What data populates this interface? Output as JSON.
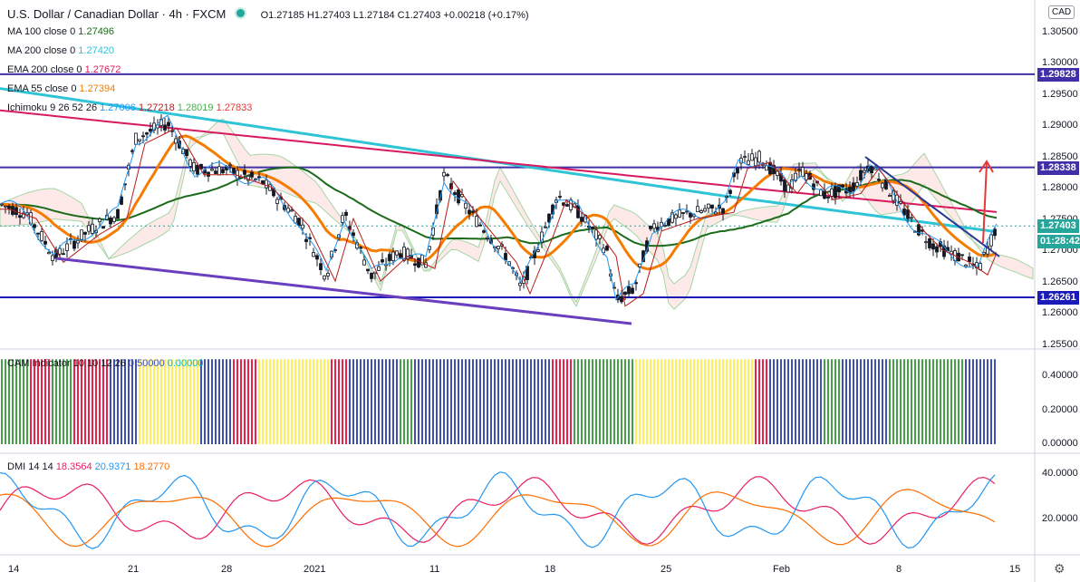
{
  "header": {
    "title": "U.S. Dollar / Canadian Dollar · 4h · FXCM",
    "ohlc": "O1.27185 H1.27403 L1.27184 C1.27403 +0.00218 (+0.17%)"
  },
  "currency_badge": "CAD",
  "legend": [
    {
      "label": "MA 100 close 0",
      "value": "1.27496",
      "color": "#1a6b1a"
    },
    {
      "label": "MA 200 close 0",
      "value": "1.27420",
      "color": "#2ec4d6"
    },
    {
      "label": "EMA 200 close 0",
      "value": "1.27672",
      "color": "#d81b60"
    },
    {
      "label": "EMA 55 close 0",
      "value": "1.27394",
      "color": "#f57c00"
    },
    {
      "label": "Ichimoku 9 26 52 26",
      "values": [
        "1.27006",
        "1.27218",
        "1.28019",
        "1.27833"
      ],
      "colors": [
        "#2196f3",
        "#b71c1c",
        "#4caf50",
        "#e53935"
      ]
    }
  ],
  "cam_legend": {
    "label": "CAM Indicator 10 10 12 26",
    "values": [
      "0.50000",
      "0.00000"
    ],
    "colors": [
      "#3f51b5",
      "#00bcd4"
    ]
  },
  "dmi_legend": {
    "label": "DMI 14 14",
    "values": [
      "18.3564",
      "20.9371",
      "18.2770"
    ],
    "colors": [
      "#e91e63",
      "#2196f3",
      "#ff6d00"
    ]
  },
  "price_axis": [
    "1.30500",
    "1.30000",
    "1.29500",
    "1.29000",
    "1.28500",
    "1.28000",
    "1.27500",
    "1.27000",
    "1.26500",
    "1.26000",
    "1.25500"
  ],
  "price_tags": [
    {
      "text": "1.29828",
      "bg": "#3f2fa8",
      "fg": "#ffffff"
    },
    {
      "text": "1.28338",
      "bg": "#3f2fa8",
      "fg": "#ffffff"
    },
    {
      "text": "1.27403",
      "bg": "#26a69a",
      "fg": "#ffffff"
    },
    {
      "text": "01:28:42",
      "bg": "#26a69a",
      "fg": "#ffffff"
    },
    {
      "text": "1.26261",
      "bg": "#1a1ab8",
      "fg": "#ffffff"
    }
  ],
  "cam_axis": [
    "0.40000",
    "0.20000",
    "0.00000"
  ],
  "dmi_axis": [
    "40.0000",
    "20.0000"
  ],
  "time_axis": [
    "14",
    "21",
    "28",
    "2021",
    "11",
    "18",
    "25",
    "Feb",
    "8",
    "15"
  ],
  "colors": {
    "up": "#26a69a",
    "down": "#ef5350",
    "line": "#131722",
    "cam": [
      "#3f51b5",
      "#ef1f4a",
      "#ffee58",
      "#43a047"
    ]
  },
  "icons": {
    "settings": "gear-icon"
  }
}
